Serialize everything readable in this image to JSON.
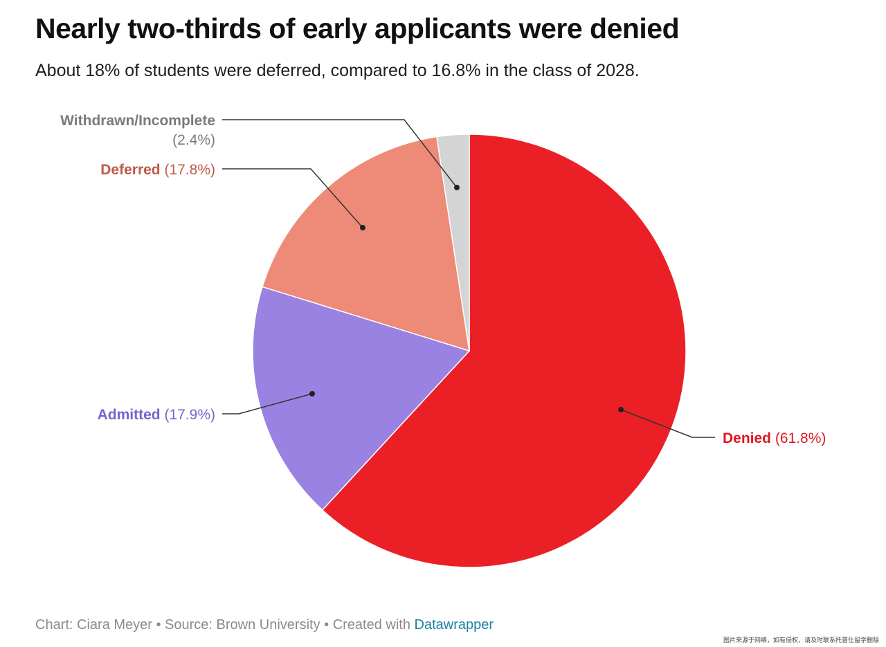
{
  "header": {
    "title": "Nearly two-thirds of early applicants were denied",
    "subtitle": "About 18% of students were deferred, compared to 16.8% in the class of 2028."
  },
  "chart_data": {
    "type": "pie",
    "slices": [
      {
        "name": "Denied",
        "value": 61.8,
        "value_label": "(61.8%)",
        "color": "#eb2027",
        "label_color": "#e0161f"
      },
      {
        "name": "Admitted",
        "value": 17.9,
        "value_label": "(17.9%)",
        "color": "#9a82e3",
        "label_color": "#7a62cc"
      },
      {
        "name": "Deferred",
        "value": 17.8,
        "value_label": "(17.8%)",
        "color": "#ed8b78",
        "label_color": "#c05a48"
      },
      {
        "name": "Withdrawn/Incomplete",
        "value": 2.4,
        "value_label": "(2.4%)",
        "color": "#d4d4d4",
        "label_color": "#7a7a7a"
      }
    ],
    "start": "12 o'clock",
    "direction": "clockwise"
  },
  "footer": {
    "credit": "Chart: Ciara Meyer • Source: Brown University • Created with ",
    "tool": "Datawrapper"
  },
  "watermark": "图片来源于网络，如有侵权，请及时联系托普仕留学删除"
}
